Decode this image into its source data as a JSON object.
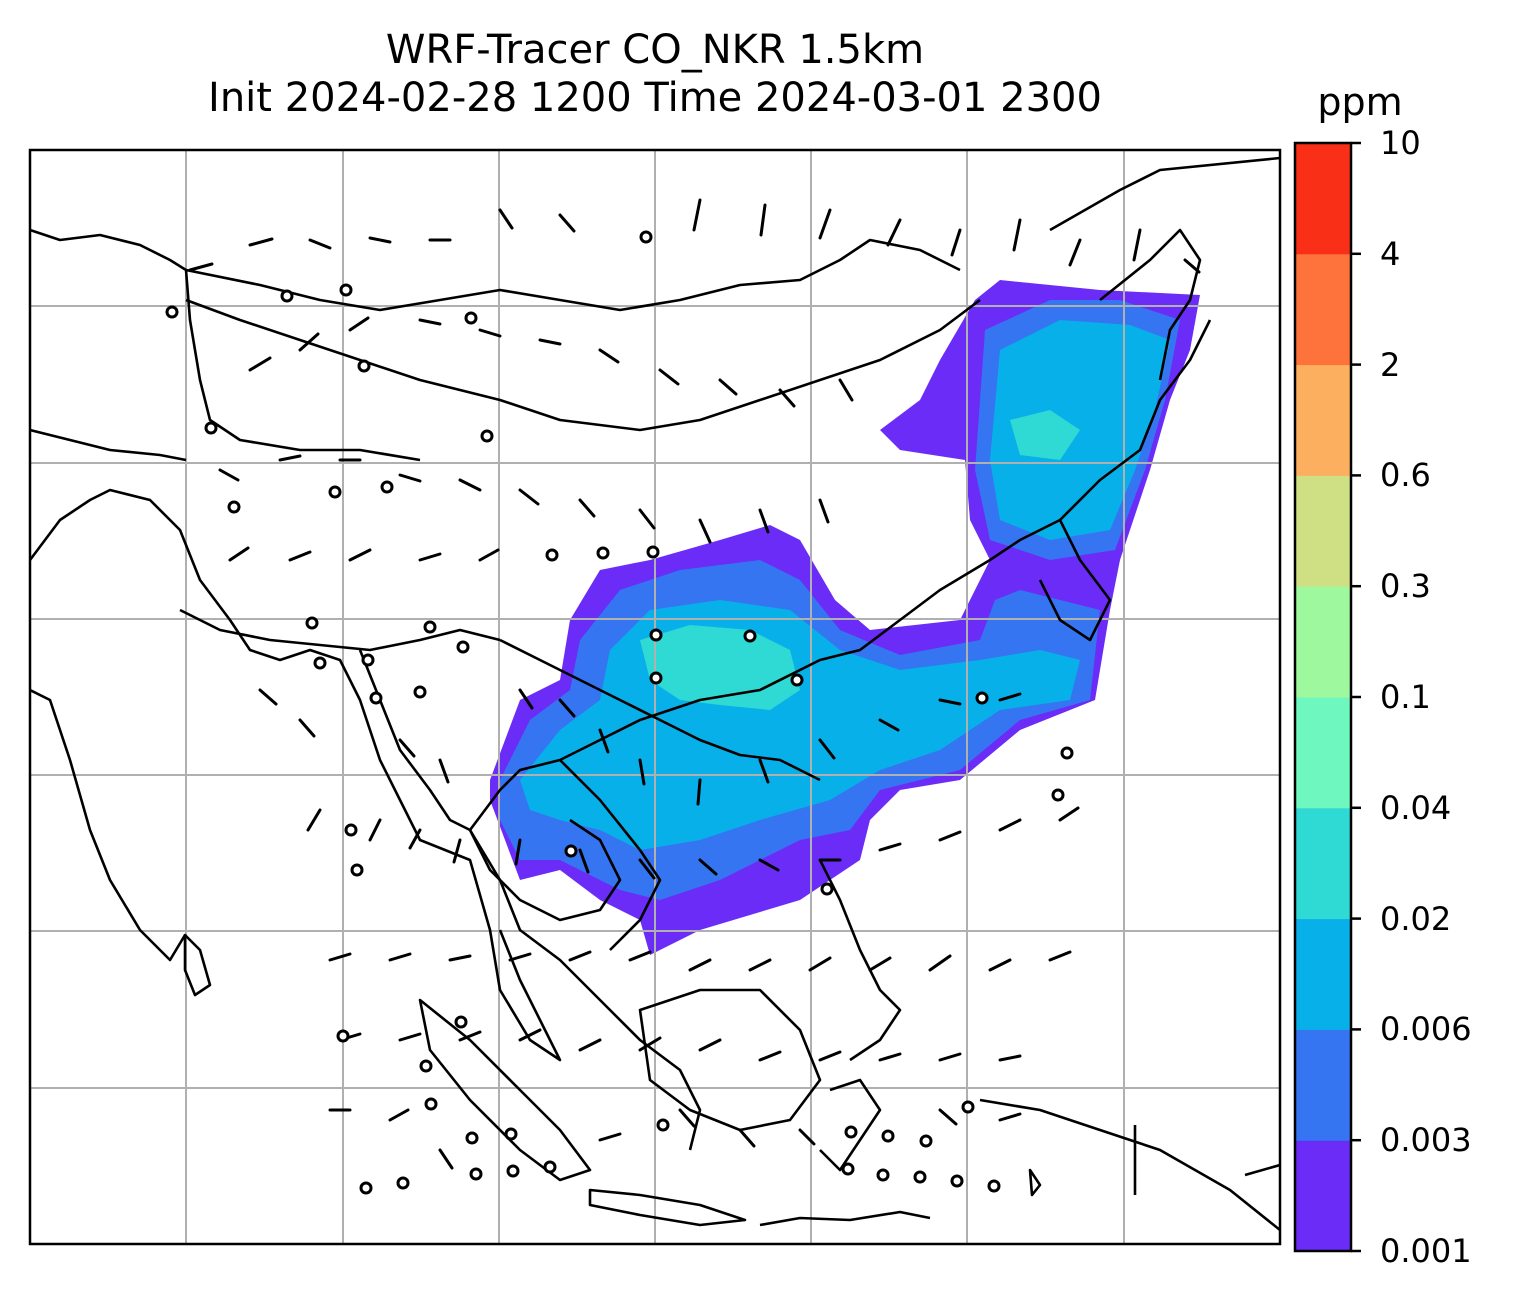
{
  "figure": {
    "title_line1": "WRF-Tracer CO_NKR 1.5km",
    "title_line2": "Init 2024-02-28 1200 Time 2024-03-01 2300"
  },
  "colorbar": {
    "unit": "ppm",
    "levels": [
      "0.001",
      "0.003",
      "0.006",
      "0.02",
      "0.04",
      "0.1",
      "0.3",
      "0.6",
      "2",
      "4",
      "10"
    ],
    "colors": [
      "#6a2cf6",
      "#3575f2",
      "#08b0ea",
      "#2fd9d4",
      "#6ff7c0",
      "#9ef99e",
      "#cfe084",
      "#fcaf5f",
      "#fd733b",
      "#fa2f17"
    ]
  },
  "map": {
    "tracer_plume": "CO_NKR concentration shaded 0.001–0.04 ppm over SE Asia / South China",
    "wind_barbs": "wind barbs overlaid on 1.5 km level",
    "gridlines": true
  }
}
